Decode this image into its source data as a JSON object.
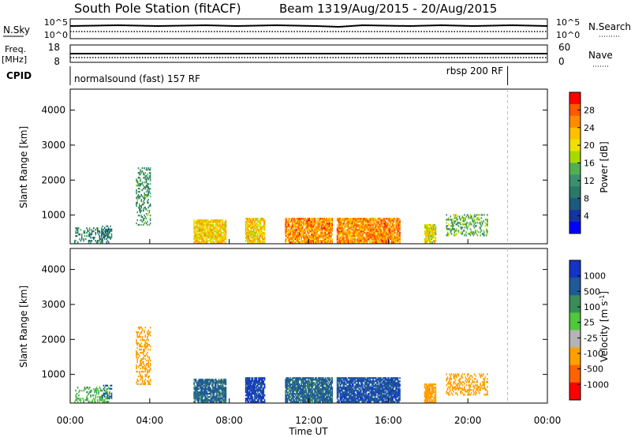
{
  "header": {
    "station": "South Pole Station (fitACF)",
    "beam": "Beam 13",
    "date_range": "19/Aug/2015 - 20/Aug/2015"
  },
  "top_panels": {
    "nsky_label": "N.Sky",
    "nsky_ticks": [
      "10^5",
      "10^0"
    ],
    "nsearch_label": "N.Search",
    "nsearch_ticks": [
      "10^5",
      "10^0"
    ],
    "freq_label": "Freq.",
    "freq_unit": "[MHz]",
    "freq_ticks": [
      "18",
      "8"
    ],
    "nave_label": "Nave",
    "nave_ticks": [
      "60",
      "0"
    ],
    "cpid_label": "CPID",
    "cpid_mode_1": "normalsound (fast) 157 RF",
    "cpid_mode_2": "rbsp 200 RF",
    "cpid_change_time_h": 22
  },
  "power_colorbar": {
    "title": "Power [dB]",
    "ticks": [
      "28",
      "24",
      "20",
      "16",
      "12",
      "8",
      "4"
    ],
    "colors": [
      "#ff0000",
      "#ff5a00",
      "#ff8c00",
      "#ffc000",
      "#f0e000",
      "#a8d800",
      "#50b050",
      "#3c9070",
      "#2a7868",
      "#1c5a80",
      "#1434a0",
      "#0000ff"
    ]
  },
  "velocity_colorbar": {
    "title": "Velocity [m s^-1]",
    "ticks": [
      "1000",
      "500",
      "100",
      "25",
      "-25",
      "-100",
      "-500",
      "-1000"
    ],
    "colors": [
      "#1434c8",
      "#1e5a96",
      "#3c8c5a",
      "#50c83c",
      "#b4b4b4",
      "#ffa000",
      "#ff6400",
      "#ff0000"
    ]
  },
  "chart_data": [
    {
      "type": "heatmap",
      "title": "Power [dB]",
      "xlabel": "",
      "ylabel": "Slant Range [km]",
      "xlim_hours": [
        0,
        24
      ],
      "ylim_km": [
        180,
        4600
      ],
      "yticks": [
        1000,
        2000,
        3000,
        4000
      ],
      "echo_regions": [
        {
          "t0": 0.2,
          "t1": 2.0,
          "r0": 200,
          "r1": 650,
          "level": "patchy",
          "power_db": 10
        },
        {
          "t0": 1.6,
          "t1": 2.1,
          "r0": 300,
          "r1": 700,
          "level": "patchy",
          "power_db": 8
        },
        {
          "t0": 3.3,
          "t1": 4.0,
          "r0": 700,
          "r1": 2350,
          "level": "patchy",
          "power_db": 12
        },
        {
          "t0": 6.2,
          "t1": 7.8,
          "r0": 200,
          "r1": 850,
          "level": "dense",
          "power_db": 22
        },
        {
          "t0": 8.8,
          "t1": 9.8,
          "r0": 200,
          "r1": 900,
          "level": "dense",
          "power_db": 22
        },
        {
          "t0": 10.8,
          "t1": 13.2,
          "r0": 200,
          "r1": 900,
          "level": "dense",
          "power_db": 26
        },
        {
          "t0": 13.4,
          "t1": 16.6,
          "r0": 200,
          "r1": 900,
          "level": "dense",
          "power_db": 26
        },
        {
          "t0": 17.8,
          "t1": 18.4,
          "r0": 200,
          "r1": 700,
          "level": "dense",
          "power_db": 20
        },
        {
          "t0": 18.9,
          "t1": 21.0,
          "r0": 400,
          "r1": 1000,
          "level": "patchy",
          "power_db": 14
        }
      ],
      "colorbar": "Power [dB]"
    },
    {
      "type": "heatmap",
      "title": "Velocity [m s^-1]",
      "xlabel": "Time UT",
      "ylabel": "Slant Range [km]",
      "xlim_hours": [
        0,
        24
      ],
      "xticks": [
        "00:00",
        "04:00",
        "08:00",
        "12:00",
        "16:00",
        "20:00",
        "00:00"
      ],
      "ylim_km": [
        180,
        4600
      ],
      "yticks": [
        1000,
        2000,
        3000,
        4000
      ],
      "echo_regions": [
        {
          "t0": 0.2,
          "t1": 2.0,
          "r0": 200,
          "r1": 650,
          "level": "patchy",
          "velocity_ms": 25
        },
        {
          "t0": 1.6,
          "t1": 2.1,
          "r0": 300,
          "r1": 700,
          "level": "patchy",
          "velocity_ms": 300
        },
        {
          "t0": 3.3,
          "t1": 4.0,
          "r0": 700,
          "r1": 2350,
          "level": "patchy",
          "velocity_ms": -300
        },
        {
          "t0": 6.2,
          "t1": 7.8,
          "r0": 200,
          "r1": 850,
          "level": "dense",
          "velocity_ms": 150
        },
        {
          "t0": 8.8,
          "t1": 9.8,
          "r0": 200,
          "r1": 900,
          "level": "dense",
          "velocity_ms": 600
        },
        {
          "t0": 10.8,
          "t1": 13.2,
          "r0": 200,
          "r1": 900,
          "level": "dense",
          "velocity_ms": 150
        },
        {
          "t0": 13.4,
          "t1": 16.6,
          "r0": 200,
          "r1": 900,
          "level": "dense",
          "velocity_ms": 400
        },
        {
          "t0": 17.8,
          "t1": 18.4,
          "r0": 200,
          "r1": 700,
          "level": "dense",
          "velocity_ms": -300
        },
        {
          "t0": 18.9,
          "t1": 21.0,
          "r0": 400,
          "r1": 1000,
          "level": "patchy",
          "velocity_ms": -300
        }
      ],
      "colorbar": "Velocity [m s^-1]"
    }
  ]
}
